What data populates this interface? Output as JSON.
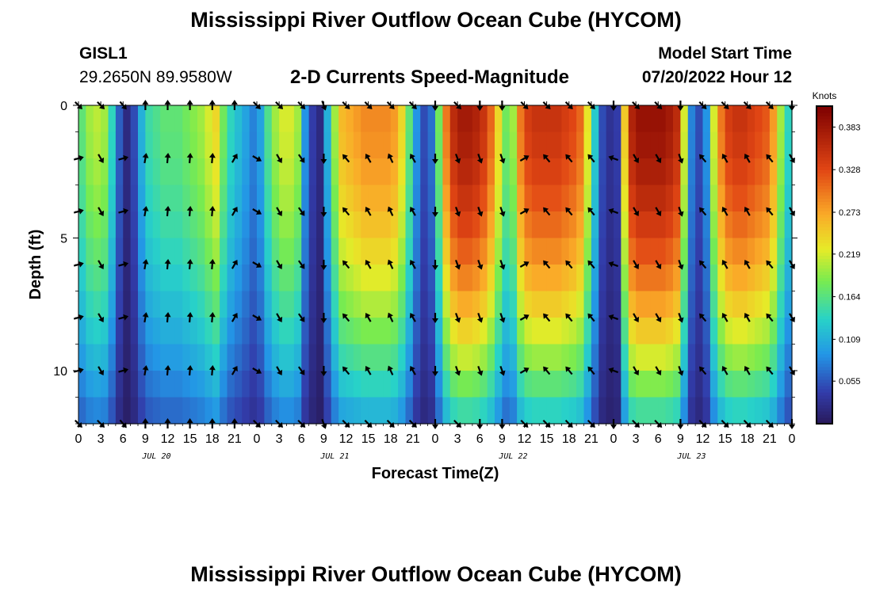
{
  "header": {
    "title": "Mississippi River Outflow Ocean Cube (HYCOM)",
    "station_id": "GISL1",
    "station_coords": "29.2650N  89.9580W",
    "subtitle": "2-D Currents Speed-Magnitude",
    "model_label": "Model Start Time",
    "model_time": "07/20/2022 Hour 12"
  },
  "footer": {
    "title_repeat": "Mississippi River Outflow Ocean Cube (HYCOM)"
  },
  "chart_data": {
    "type": "heatmap",
    "title": "2-D Currents Speed-Magnitude",
    "xlabel": "Forecast Time(Z)",
    "ylabel": "Depth (ft)",
    "x_unit": "hours since JUL 20 00Z",
    "xlim": [
      0,
      96
    ],
    "ylim": [
      12,
      0
    ],
    "x_ticks": [
      0,
      3,
      6,
      9,
      12,
      15,
      18,
      21,
      24,
      27,
      30,
      33,
      36,
      39,
      42,
      45,
      48,
      51,
      54,
      57,
      60,
      63,
      66,
      69,
      72,
      75,
      78,
      81,
      84,
      87,
      90,
      93,
      96
    ],
    "x_tick_labels": [
      "0",
      "3",
      "6",
      "9",
      "12",
      "15",
      "18",
      "21",
      "0",
      "3",
      "6",
      "9",
      "12",
      "15",
      "18",
      "21",
      "0",
      "3",
      "6",
      "9",
      "12",
      "15",
      "18",
      "21",
      "0",
      "3",
      "6",
      "9",
      "12",
      "15",
      "18",
      "21",
      "0"
    ],
    "y_ticks": [
      0,
      5,
      10
    ],
    "y_tick_labels": [
      "0",
      "5",
      "10"
    ],
    "day_labels": [
      {
        "label": "JUL 20",
        "x": 10.5
      },
      {
        "label": "JUL 21",
        "x": 34.5
      },
      {
        "label": "JUL 22",
        "x": 58.5
      },
      {
        "label": "JUL 23",
        "x": 82.5
      }
    ],
    "colorbar": {
      "label": "Knots",
      "range": [
        0.0,
        0.41
      ],
      "ticks": [
        0.055,
        0.109,
        0.164,
        0.219,
        0.273,
        0.328,
        0.383
      ],
      "tick_labels": [
        "0.055",
        "0.109",
        "0.164",
        "0.219",
        "0.273",
        "0.328",
        "0.383"
      ]
    },
    "depth_levels": [
      0,
      2,
      4,
      6,
      8,
      10,
      12
    ],
    "speed_profile": {
      "description": "near-surface speed (knots) by forecast hour; decays with depth",
      "hours": [
        0,
        1,
        2,
        3,
        4,
        5,
        6,
        7,
        8,
        9,
        10,
        11,
        12,
        13,
        14,
        15,
        16,
        17,
        18,
        19,
        20,
        21,
        22,
        23,
        24,
        25,
        26,
        27,
        28,
        29,
        30,
        31,
        32,
        33,
        34,
        35,
        36,
        37,
        38,
        39,
        40,
        41,
        42,
        43,
        44,
        45,
        46,
        47,
        48,
        49,
        50,
        51,
        52,
        53,
        54,
        55,
        56,
        57,
        58,
        59,
        60,
        61,
        62,
        63,
        64,
        65,
        66,
        67,
        68,
        69,
        70,
        71,
        72,
        73,
        74,
        75,
        76,
        77,
        78,
        79,
        80,
        81,
        82,
        83,
        84,
        85,
        86,
        87,
        88,
        89,
        90,
        91,
        92,
        93,
        94,
        95
      ],
      "speed": [
        0.17,
        0.2,
        0.21,
        0.2,
        0.14,
        0.06,
        0.02,
        0.05,
        0.11,
        0.15,
        0.16,
        0.17,
        0.17,
        0.17,
        0.18,
        0.19,
        0.2,
        0.22,
        0.24,
        0.18,
        0.14,
        0.12,
        0.1,
        0.08,
        0.1,
        0.16,
        0.2,
        0.22,
        0.22,
        0.2,
        0.09,
        0.04,
        0.02,
        0.11,
        0.2,
        0.26,
        0.27,
        0.28,
        0.29,
        0.29,
        0.29,
        0.29,
        0.28,
        0.24,
        0.17,
        0.09,
        0.05,
        0.07,
        0.18,
        0.3,
        0.36,
        0.38,
        0.38,
        0.37,
        0.35,
        0.31,
        0.24,
        0.18,
        0.2,
        0.3,
        0.34,
        0.35,
        0.35,
        0.35,
        0.35,
        0.34,
        0.33,
        0.31,
        0.23,
        0.13,
        0.05,
        0.03,
        0.04,
        0.25,
        0.37,
        0.39,
        0.39,
        0.39,
        0.39,
        0.38,
        0.36,
        0.22,
        0.08,
        0.05,
        0.09,
        0.22,
        0.3,
        0.34,
        0.35,
        0.35,
        0.34,
        0.33,
        0.32,
        0.28,
        0.2,
        0.14
      ]
    },
    "vectors": {
      "description": "flow direction arrows (degrees clockwise from north) at depth levels 0,2,4,6,8,10,12 ft, every 3 forecast hours",
      "hours": [
        0,
        3,
        6,
        9,
        12,
        15,
        18,
        21,
        24,
        27,
        30,
        33,
        36,
        39,
        42,
        45,
        48,
        51,
        54,
        57,
        60,
        63,
        66,
        69,
        72,
        75,
        78,
        81,
        84,
        87,
        90,
        93,
        96
      ],
      "surface_dir_deg": [
        135,
        135,
        140,
        0,
        0,
        0,
        0,
        0,
        135,
        135,
        135,
        160,
        135,
        135,
        135,
        135,
        180,
        135,
        180,
        180,
        135,
        135,
        135,
        135,
        180,
        135,
        135,
        180,
        135,
        135,
        135,
        135,
        180
      ],
      "subsurface_dir_deg": [
        75,
        150,
        75,
        10,
        5,
        5,
        5,
        30,
        120,
        150,
        145,
        180,
        320,
        330,
        335,
        330,
        180,
        160,
        160,
        160,
        60,
        320,
        320,
        320,
        290,
        150,
        150,
        160,
        320,
        330,
        330,
        320,
        150
      ]
    }
  }
}
